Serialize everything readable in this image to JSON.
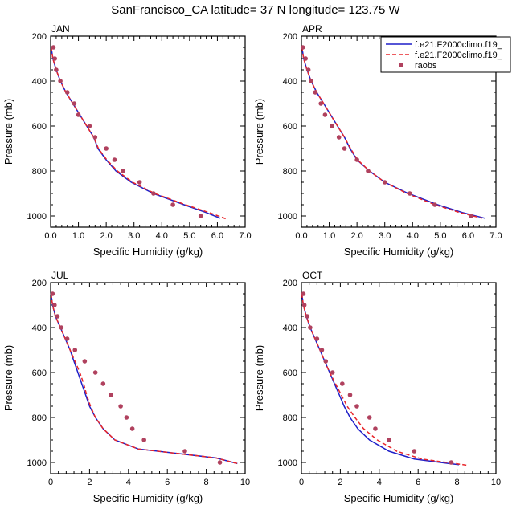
{
  "title": "SanFrancisco_CA  latitude= 37 N longitude= 123.75 W",
  "colors": {
    "model1": "#1f1fc8",
    "model2": "#e8262b",
    "obs": "#b0415e",
    "axis": "#000000"
  },
  "legend": {
    "entries": [
      {
        "label": "f.e21.F2000climo.f19_",
        "style": "solid",
        "color_key": "model1"
      },
      {
        "label": "f.e21.F2000climo.f19_",
        "style": "dashed",
        "color_key": "model2"
      },
      {
        "label": "raobs",
        "style": "marker",
        "color_key": "obs"
      }
    ]
  },
  "chart_data": [
    {
      "type": "line",
      "panel": "JAN",
      "xlabel": "Specific Humidity (g/kg)",
      "ylabel": "Pressure (mb)",
      "xlim": [
        0,
        7
      ],
      "ylim": [
        1050,
        200
      ],
      "y_inverted": true,
      "xticks": [
        0,
        1,
        2,
        3,
        4,
        5,
        6,
        7
      ],
      "xtick_labels": [
        "0.0",
        "1.0",
        "2.0",
        "3.0",
        "4.0",
        "5.0",
        "6.0",
        "7.0"
      ],
      "yticks": [
        200,
        400,
        600,
        800,
        1000
      ],
      "series": [
        {
          "name": "f.e21.F2000climo.f19_",
          "style": "solid",
          "points": [
            [
              0.02,
              250
            ],
            [
              0.08,
              300
            ],
            [
              0.2,
              350
            ],
            [
              0.35,
              400
            ],
            [
              0.55,
              450
            ],
            [
              0.8,
              500
            ],
            [
              1.05,
              550
            ],
            [
              1.3,
              600
            ],
            [
              1.55,
              650
            ],
            [
              1.7,
              700
            ],
            [
              2.0,
              750
            ],
            [
              2.35,
              800
            ],
            [
              2.9,
              850
            ],
            [
              3.7,
              900
            ],
            [
              4.8,
              950
            ],
            [
              5.6,
              985
            ],
            [
              6.1,
              1010
            ]
          ]
        },
        {
          "name": "f.e21.F2000climo.f19_",
          "style": "dashed",
          "points": [
            [
              0.02,
              250
            ],
            [
              0.08,
              300
            ],
            [
              0.2,
              350
            ],
            [
              0.35,
              400
            ],
            [
              0.55,
              450
            ],
            [
              0.8,
              500
            ],
            [
              1.05,
              550
            ],
            [
              1.3,
              600
            ],
            [
              1.55,
              650
            ],
            [
              1.72,
              700
            ],
            [
              2.02,
              750
            ],
            [
              2.4,
              800
            ],
            [
              2.95,
              850
            ],
            [
              3.75,
              900
            ],
            [
              4.85,
              950
            ],
            [
              5.7,
              985
            ],
            [
              6.3,
              1012
            ]
          ]
        },
        {
          "name": "raobs",
          "style": "marker",
          "points": [
            [
              0.1,
              250
            ],
            [
              0.15,
              300
            ],
            [
              0.2,
              350
            ],
            [
              0.35,
              400
            ],
            [
              0.6,
              450
            ],
            [
              0.85,
              500
            ],
            [
              1.0,
              550
            ],
            [
              1.4,
              600
            ],
            [
              1.6,
              650
            ],
            [
              2.0,
              700
            ],
            [
              2.3,
              750
            ],
            [
              2.6,
              800
            ],
            [
              3.2,
              850
            ],
            [
              3.7,
              900
            ],
            [
              4.4,
              950
            ],
            [
              5.4,
              1000
            ]
          ]
        }
      ]
    },
    {
      "type": "line",
      "panel": "APR",
      "xlabel": "Specific Humidity (g/kg)",
      "ylabel": "Pressure (mb)",
      "xlim": [
        0,
        7
      ],
      "ylim": [
        1050,
        200
      ],
      "y_inverted": true,
      "xticks": [
        0,
        1,
        2,
        3,
        4,
        5,
        6,
        7
      ],
      "xtick_labels": [
        "0.0",
        "1.0",
        "2.0",
        "3.0",
        "4.0",
        "5.0",
        "6.0",
        "7.0"
      ],
      "yticks": [
        200,
        400,
        600,
        800,
        1000
      ],
      "series": [
        {
          "name": "f.e21.F2000climo.f19_",
          "style": "solid",
          "points": [
            [
              0.02,
              250
            ],
            [
              0.08,
              300
            ],
            [
              0.2,
              350
            ],
            [
              0.35,
              400
            ],
            [
              0.55,
              450
            ],
            [
              0.8,
              500
            ],
            [
              1.05,
              550
            ],
            [
              1.3,
              600
            ],
            [
              1.55,
              650
            ],
            [
              1.75,
              700
            ],
            [
              2.0,
              750
            ],
            [
              2.45,
              800
            ],
            [
              3.0,
              850
            ],
            [
              3.85,
              900
            ],
            [
              4.9,
              950
            ],
            [
              5.8,
              985
            ],
            [
              6.6,
              1010
            ]
          ]
        },
        {
          "name": "f.e21.F2000climo.f19_",
          "style": "dashed",
          "points": [
            [
              0.02,
              250
            ],
            [
              0.08,
              300
            ],
            [
              0.2,
              350
            ],
            [
              0.35,
              400
            ],
            [
              0.55,
              450
            ],
            [
              0.8,
              500
            ],
            [
              1.05,
              550
            ],
            [
              1.3,
              600
            ],
            [
              1.55,
              650
            ],
            [
              1.77,
              700
            ],
            [
              2.02,
              750
            ],
            [
              2.45,
              800
            ],
            [
              3.0,
              850
            ],
            [
              3.8,
              900
            ],
            [
              4.8,
              950
            ],
            [
              5.7,
              985
            ],
            [
              6.5,
              1010
            ]
          ]
        },
        {
          "name": "raobs",
          "style": "marker",
          "points": [
            [
              0.05,
              250
            ],
            [
              0.15,
              300
            ],
            [
              0.25,
              350
            ],
            [
              0.35,
              400
            ],
            [
              0.5,
              450
            ],
            [
              0.7,
              500
            ],
            [
              0.85,
              550
            ],
            [
              1.1,
              600
            ],
            [
              1.35,
              650
            ],
            [
              1.55,
              700
            ],
            [
              2.0,
              750
            ],
            [
              2.4,
              800
            ],
            [
              3.0,
              850
            ],
            [
              3.9,
              900
            ],
            [
              4.8,
              950
            ],
            [
              6.1,
              1000
            ]
          ]
        }
      ]
    },
    {
      "type": "line",
      "panel": "JUL",
      "xlabel": "Specific Humidity (g/kg)",
      "ylabel": "Pressure (mb)",
      "xlim": [
        0,
        10
      ],
      "ylim": [
        1050,
        200
      ],
      "y_inverted": true,
      "xticks": [
        0,
        2,
        4,
        6,
        8,
        10
      ],
      "xtick_labels": [
        "0",
        "2",
        "4",
        "6",
        "8",
        "10"
      ],
      "yticks": [
        200,
        400,
        600,
        800,
        1000
      ],
      "series": [
        {
          "name": "f.e21.F2000climo.f19_",
          "style": "solid",
          "points": [
            [
              0.02,
              250
            ],
            [
              0.1,
              300
            ],
            [
              0.25,
              350
            ],
            [
              0.5,
              400
            ],
            [
              0.75,
              450
            ],
            [
              1.0,
              500
            ],
            [
              1.2,
              550
            ],
            [
              1.4,
              600
            ],
            [
              1.6,
              650
            ],
            [
              1.8,
              700
            ],
            [
              2.0,
              750
            ],
            [
              2.3,
              800
            ],
            [
              2.7,
              850
            ],
            [
              3.3,
              900
            ],
            [
              4.5,
              940
            ],
            [
              6.5,
              960
            ],
            [
              8.5,
              980
            ],
            [
              9.6,
              1005
            ]
          ]
        },
        {
          "name": "f.e21.F2000climo.f19_",
          "style": "dashed",
          "points": [
            [
              0.02,
              250
            ],
            [
              0.1,
              300
            ],
            [
              0.25,
              350
            ],
            [
              0.5,
              400
            ],
            [
              0.75,
              450
            ],
            [
              1.0,
              500
            ],
            [
              1.25,
              550
            ],
            [
              1.5,
              600
            ],
            [
              1.7,
              650
            ],
            [
              1.85,
              700
            ],
            [
              2.05,
              750
            ],
            [
              2.3,
              800
            ],
            [
              2.7,
              850
            ],
            [
              3.3,
              900
            ],
            [
              4.5,
              940
            ],
            [
              6.5,
              960
            ],
            [
              8.5,
              980
            ],
            [
              9.6,
              1005
            ]
          ]
        },
        {
          "name": "raobs",
          "style": "marker",
          "points": [
            [
              0.1,
              250
            ],
            [
              0.2,
              300
            ],
            [
              0.35,
              350
            ],
            [
              0.55,
              400
            ],
            [
              0.85,
              450
            ],
            [
              1.25,
              500
            ],
            [
              1.75,
              550
            ],
            [
              2.3,
              600
            ],
            [
              2.7,
              650
            ],
            [
              3.1,
              700
            ],
            [
              3.6,
              750
            ],
            [
              3.9,
              800
            ],
            [
              4.2,
              850
            ],
            [
              4.8,
              900
            ],
            [
              6.9,
              950
            ],
            [
              8.7,
              1000
            ]
          ]
        }
      ]
    },
    {
      "type": "line",
      "panel": "OCT",
      "xlabel": "Specific Humidity (g/kg)",
      "ylabel": "Pressure (mb)",
      "xlim": [
        0,
        10
      ],
      "ylim": [
        1050,
        200
      ],
      "y_inverted": true,
      "xticks": [
        0,
        2,
        4,
        6,
        8,
        10
      ],
      "xtick_labels": [
        "0",
        "2",
        "4",
        "6",
        "8",
        "10"
      ],
      "yticks": [
        200,
        400,
        600,
        800,
        1000
      ],
      "series": [
        {
          "name": "f.e21.F2000climo.f19_",
          "style": "solid",
          "points": [
            [
              0.02,
              250
            ],
            [
              0.1,
              300
            ],
            [
              0.25,
              350
            ],
            [
              0.45,
              400
            ],
            [
              0.7,
              450
            ],
            [
              0.95,
              500
            ],
            [
              1.2,
              550
            ],
            [
              1.45,
              600
            ],
            [
              1.7,
              650
            ],
            [
              1.95,
              700
            ],
            [
              2.2,
              750
            ],
            [
              2.5,
              800
            ],
            [
              2.9,
              850
            ],
            [
              3.5,
              900
            ],
            [
              4.5,
              950
            ],
            [
              5.8,
              985
            ],
            [
              7.6,
              1005
            ],
            [
              8.1,
              1010
            ]
          ]
        },
        {
          "name": "f.e21.F2000climo.f19_",
          "style": "dashed",
          "points": [
            [
              0.02,
              250
            ],
            [
              0.1,
              300
            ],
            [
              0.25,
              350
            ],
            [
              0.45,
              400
            ],
            [
              0.7,
              450
            ],
            [
              0.95,
              500
            ],
            [
              1.2,
              550
            ],
            [
              1.45,
              600
            ],
            [
              1.75,
              650
            ],
            [
              2.05,
              700
            ],
            [
              2.35,
              750
            ],
            [
              2.75,
              800
            ],
            [
              3.2,
              850
            ],
            [
              3.9,
              900
            ],
            [
              4.9,
              950
            ],
            [
              6.2,
              985
            ],
            [
              7.9,
              1005
            ],
            [
              8.5,
              1012
            ]
          ]
        },
        {
          "name": "raobs",
          "style": "marker",
          "points": [
            [
              0.1,
              250
            ],
            [
              0.15,
              300
            ],
            [
              0.3,
              350
            ],
            [
              0.45,
              400
            ],
            [
              0.8,
              450
            ],
            [
              1.05,
              500
            ],
            [
              1.25,
              550
            ],
            [
              1.6,
              600
            ],
            [
              2.1,
              650
            ],
            [
              2.5,
              700
            ],
            [
              2.85,
              750
            ],
            [
              3.5,
              800
            ],
            [
              3.8,
              850
            ],
            [
              4.5,
              900
            ],
            [
              5.8,
              950
            ],
            [
              7.7,
              1000
            ]
          ]
        }
      ]
    }
  ]
}
